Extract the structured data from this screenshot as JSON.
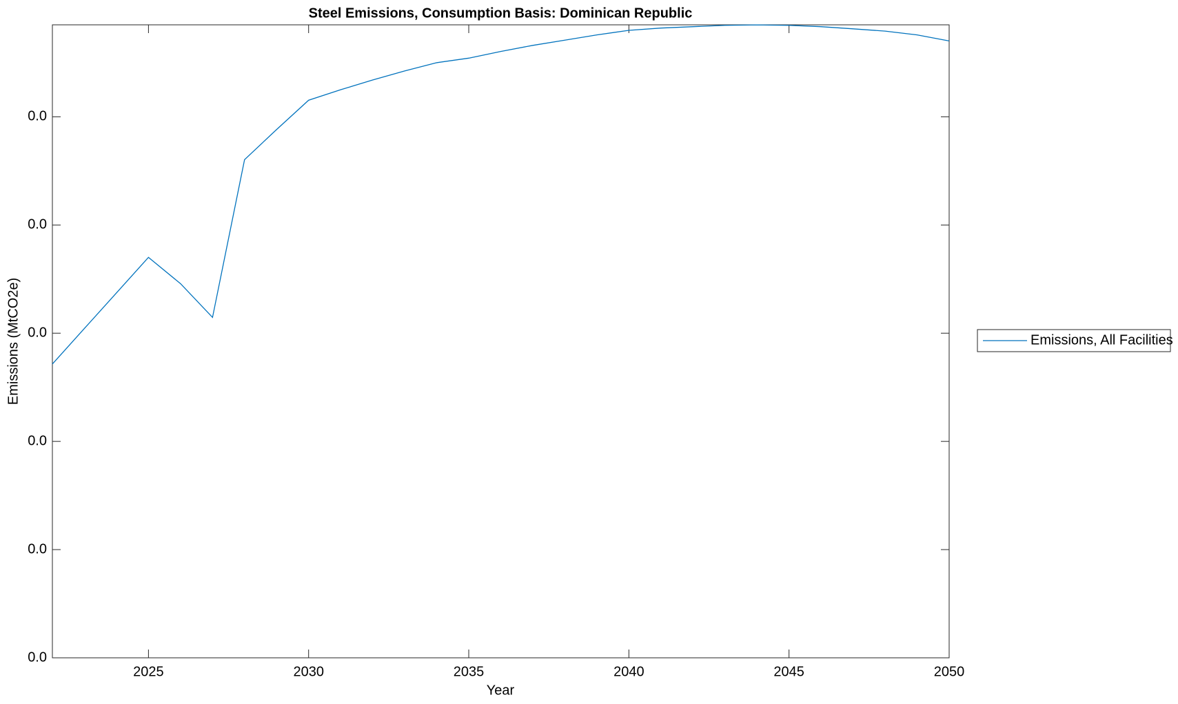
{
  "chart_data": {
    "type": "line",
    "title": "Steel Emissions, Consumption Basis: Dominican Republic",
    "x_label": "Year",
    "y_label": "Emissions (MtCO2e)",
    "x": [
      2022,
      2023,
      2024,
      2025,
      2026,
      2027,
      2028,
      2029,
      2030,
      2031,
      2032,
      2033,
      2034,
      2035,
      2036,
      2037,
      2038,
      2039,
      2040,
      2041,
      2042,
      2043,
      2044,
      2045,
      2046,
      2047,
      2048,
      2049,
      2050
    ],
    "series": [
      {
        "name": "Emissions, All Facilities",
        "color": "#0072bd",
        "values": [
          0.02715,
          0.03044,
          0.03372,
          0.03701,
          0.03458,
          0.03146,
          0.04604,
          0.04882,
          0.05153,
          0.0525,
          0.0534,
          0.05424,
          0.055,
          0.05542,
          0.05604,
          0.0566,
          0.05708,
          0.05757,
          0.05799,
          0.0582,
          0.05833,
          0.05845,
          0.05849,
          0.05845,
          0.05833,
          0.05813,
          0.05792,
          0.05757,
          0.05701
        ]
      }
    ],
    "xlim": [
      2022,
      2050
    ],
    "xticks": [
      2025,
      2030,
      2035,
      2040,
      2045,
      2050
    ],
    "ylim": [
      0,
      0.0585
    ],
    "yticks": [
      {
        "value": 0,
        "label": "0.0"
      },
      {
        "value": 0.01,
        "label": "0.0"
      },
      {
        "value": 0.02,
        "label": "0.0"
      },
      {
        "value": 0.03,
        "label": "0.0"
      },
      {
        "value": 0.04,
        "label": "0.0"
      },
      {
        "value": 0.05,
        "label": "0.0"
      }
    ],
    "legend": "right"
  }
}
